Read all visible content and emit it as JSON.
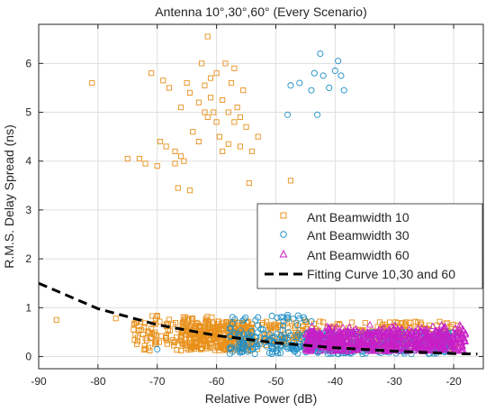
{
  "chart_data": {
    "type": "scatter",
    "title": "Antenna 10°,30°,60° (Every Scenario)",
    "xlabel": "Relative Power (dB)",
    "ylabel": "R.M.S. Delay Spread (ns)",
    "xlim": [
      -90,
      -15
    ],
    "ylim": [
      -0.25,
      6.8
    ],
    "x_ticks": [
      -90,
      -80,
      -70,
      -60,
      -50,
      -40,
      -30,
      -20
    ],
    "y_ticks": [
      0,
      1,
      2,
      3,
      4,
      5,
      6
    ],
    "x_tick_labels": [
      "-90",
      "-80",
      "-70",
      "-60",
      "-50",
      "-40",
      "-30",
      "-20"
    ],
    "y_tick_labels": [
      "0",
      "1",
      "2",
      "3",
      "4",
      "5",
      "6"
    ],
    "grid": true,
    "legend_position": "lower-right",
    "series": [
      {
        "name": "Ant Beamwidth 10",
        "marker": "square",
        "color": "#E8901A",
        "upper_cluster": [
          [
            -81,
            5.6
          ],
          [
            -75,
            4.05
          ],
          [
            -73,
            4.05
          ],
          [
            -72,
            3.95
          ],
          [
            -71,
            5.8
          ],
          [
            -70,
            3.9
          ],
          [
            -69.5,
            4.4
          ],
          [
            -69,
            5.65
          ],
          [
            -68,
            5.5
          ],
          [
            -67,
            4.2
          ],
          [
            -66.5,
            3.45
          ],
          [
            -66,
            5.1
          ],
          [
            -65,
            5.6
          ],
          [
            -64.5,
            3.4
          ],
          [
            -64,
            4.6
          ],
          [
            -63,
            5.2
          ],
          [
            -62.5,
            6.0
          ],
          [
            -62,
            5.55
          ],
          [
            -61.5,
            4.9
          ],
          [
            -61,
            5.3
          ],
          [
            -60.5,
            5.0
          ],
          [
            -60,
            5.8
          ],
          [
            -59.5,
            4.5
          ],
          [
            -59,
            5.25
          ],
          [
            -58.5,
            6.0
          ],
          [
            -58,
            4.35
          ],
          [
            -57.5,
            5.6
          ],
          [
            -57,
            4.8
          ],
          [
            -56.5,
            5.1
          ],
          [
            -56,
            4.3
          ],
          [
            -55.5,
            5.45
          ],
          [
            -55,
            4.7
          ],
          [
            -54.5,
            3.55
          ],
          [
            -54,
            4.2
          ],
          [
            -53,
            4.5
          ],
          [
            -47.5,
            3.6
          ],
          [
            -61.5,
            6.55
          ],
          [
            -60,
            4.8
          ],
          [
            -59,
            4.2
          ],
          [
            -58,
            5.0
          ],
          [
            -57,
            5.9
          ],
          [
            -56,
            4.9
          ],
          [
            -64.5,
            5.4
          ],
          [
            -63,
            4.4
          ],
          [
            -62,
            5.0
          ],
          [
            -61,
            5.7
          ],
          [
            -66,
            4.1
          ],
          [
            -67,
            3.95
          ],
          [
            -68.5,
            4.3
          ],
          [
            -65.5,
            4.0
          ]
        ],
        "lower_cluster_desc": "dense band from x=-87 to x=-20, y=0.1 to 0.9"
      },
      {
        "name": "Ant Beamwidth 30",
        "marker": "circle",
        "color": "#1F8FC6",
        "upper_cluster": [
          [
            -48,
            4.95
          ],
          [
            -47.5,
            5.55
          ],
          [
            -46,
            5.6
          ],
          [
            -44,
            5.45
          ],
          [
            -43.5,
            5.8
          ],
          [
            -43,
            4.95
          ],
          [
            -42.5,
            6.2
          ],
          [
            -42,
            5.75
          ],
          [
            -41,
            5.5
          ],
          [
            -40,
            5.85
          ],
          [
            -39.5,
            6.05
          ],
          [
            -39,
            5.75
          ],
          [
            -38.5,
            5.45
          ]
        ],
        "lower_cluster_desc": "band from x=-71 to x=-20, y=0.05 to 0.85"
      },
      {
        "name": "Ant Beamwidth 60",
        "marker": "triangle",
        "color": "#C81FC8",
        "lower_cluster_desc": "band from x=-45 to x=-18, y=0.1 to 0.65"
      },
      {
        "name": "Fitting Curve 10,30 and 60",
        "marker": "dashed-line",
        "color": "#000000",
        "x": [
          -90,
          -80,
          -70,
          -60,
          -50,
          -40,
          -30,
          -20,
          -16
        ],
        "y": [
          1.5,
          0.98,
          0.65,
          0.43,
          0.28,
          0.18,
          0.11,
          0.06,
          0.05
        ]
      }
    ]
  }
}
